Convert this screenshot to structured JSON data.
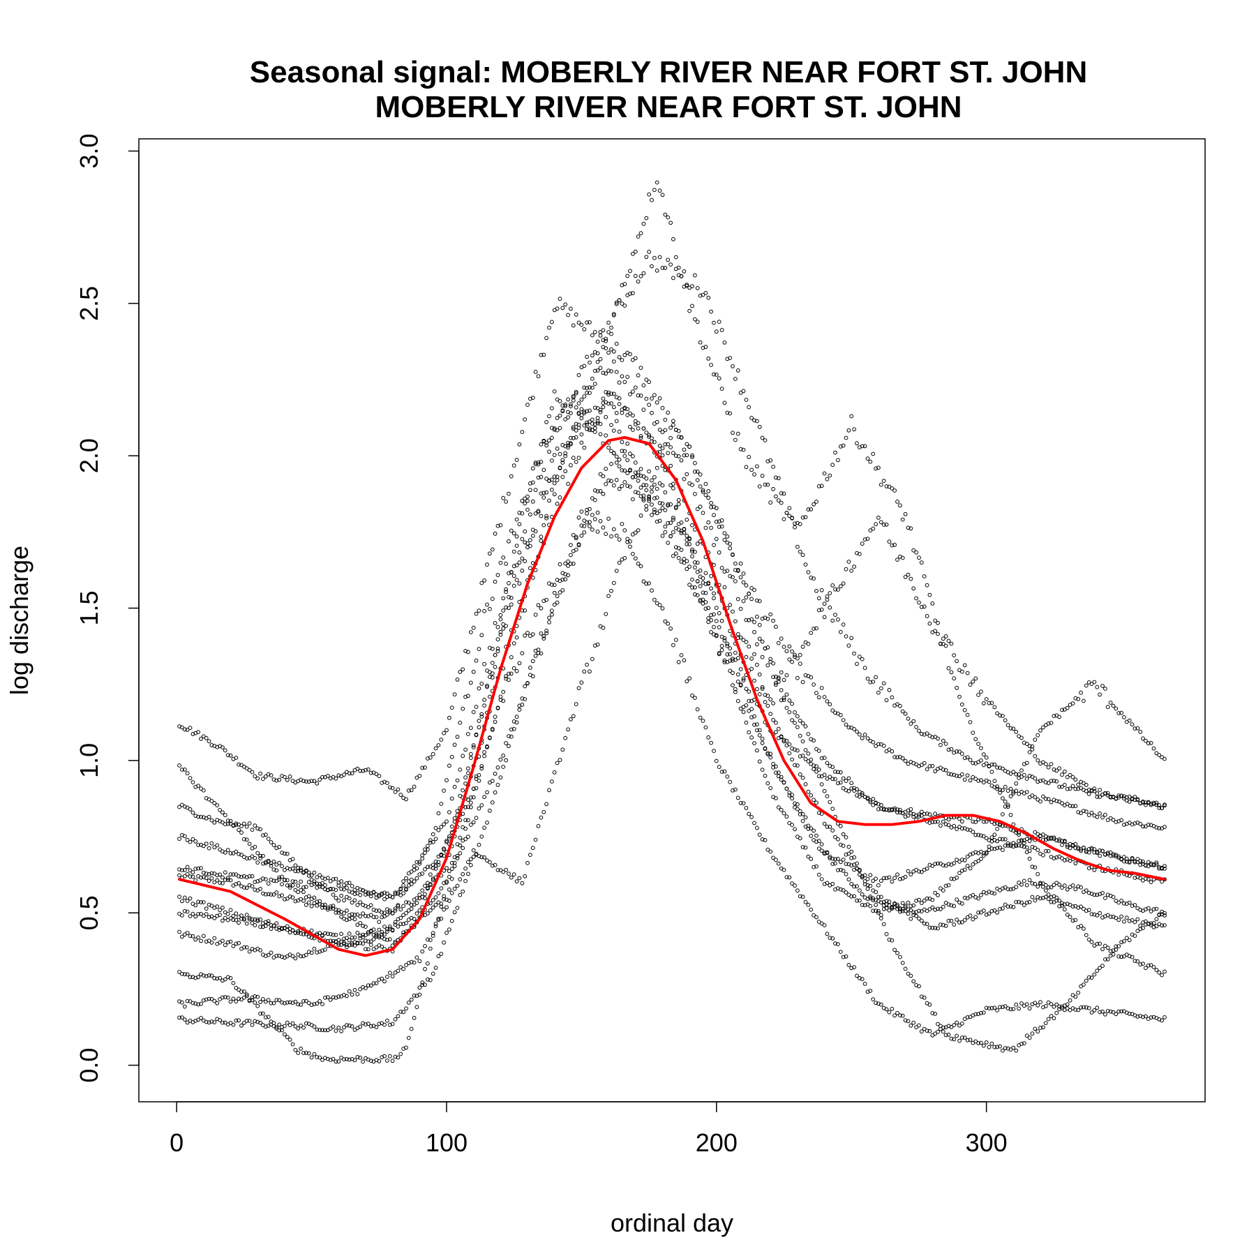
{
  "chart_data": {
    "type": "scatter",
    "title_lines": [
      "Seasonal signal: MOBERLY RIVER NEAR FORT ST. JOHN",
      "MOBERLY RIVER NEAR FORT ST. JOHN"
    ],
    "xlabel": "ordinal day",
    "ylabel": "log discharge",
    "xlim": [
      -14,
      381
    ],
    "ylim": [
      -0.12,
      3.04
    ],
    "x_ticks": [
      0,
      100,
      200,
      300
    ],
    "x_tick_labels": [
      "0",
      "100",
      "200",
      "300"
    ],
    "y_ticks": [
      0.0,
      0.5,
      1.0,
      1.5,
      2.0,
      2.5,
      3.0
    ],
    "y_tick_labels": [
      "0.0",
      "0.5",
      "1.0",
      "1.5",
      "2.0",
      "2.5",
      "3.0"
    ],
    "grid": false,
    "legend": "none",
    "colors": {
      "points": "#000000",
      "smooth": "#ff0000"
    },
    "point_series_anchors": [
      {
        "x": [
          1,
          20,
          40,
          65,
          75,
          90,
          110,
          125,
          140,
          155,
          165,
          180,
          200,
          220,
          240,
          260,
          280,
          300,
          320,
          340,
          366
        ],
        "y": [
          0.62,
          0.6,
          0.55,
          0.5,
          0.48,
          0.55,
          0.9,
          1.7,
          2.2,
          2.1,
          2.0,
          1.8,
          1.45,
          1.1,
          0.95,
          0.85,
          0.82,
          0.8,
          0.75,
          0.7,
          0.65
        ]
      },
      {
        "x": [
          1,
          15,
          30,
          50,
          70,
          85,
          100,
          120,
          140,
          155,
          170,
          190,
          210,
          230,
          250,
          270,
          290,
          310,
          330,
          350,
          366
        ],
        "y": [
          1.12,
          1.05,
          0.95,
          0.93,
          0.97,
          0.88,
          1.1,
          1.8,
          2.5,
          2.4,
          2.3,
          2.0,
          1.6,
          1.3,
          1.1,
          1.0,
          0.95,
          0.9,
          0.85,
          0.8,
          0.78
        ]
      },
      {
        "x": [
          1,
          20,
          40,
          60,
          75,
          90,
          105,
          125,
          145,
          160,
          175,
          195,
          215,
          235,
          255,
          275,
          295,
          315,
          335,
          355,
          366
        ],
        "y": [
          0.43,
          0.4,
          0.35,
          0.4,
          0.42,
          0.5,
          0.85,
          1.6,
          2.05,
          2.15,
          1.85,
          1.5,
          1.1,
          0.75,
          0.55,
          0.5,
          0.55,
          0.6,
          0.58,
          0.52,
          0.5
        ]
      },
      {
        "x": [
          1,
          20,
          45,
          60,
          80,
          95,
          115,
          135,
          150,
          165,
          180,
          200,
          220,
          240,
          260,
          280,
          300,
          320,
          340,
          366
        ],
        "y": [
          0.15,
          0.14,
          0.13,
          0.12,
          0.14,
          0.3,
          0.8,
          1.4,
          1.8,
          1.75,
          1.5,
          1.0,
          0.7,
          0.45,
          0.2,
          0.1,
          0.18,
          0.2,
          0.18,
          0.15
        ]
      },
      {
        "x": [
          1,
          15,
          30,
          45,
          60,
          80,
          95,
          115,
          135,
          155,
          175,
          195,
          215,
          235,
          255,
          275,
          295,
          315,
          335,
          366
        ],
        "y": [
          0.85,
          0.8,
          0.78,
          0.65,
          0.55,
          0.5,
          0.75,
          1.5,
          2.0,
          2.35,
          2.65,
          2.55,
          2.1,
          1.6,
          1.3,
          1.1,
          1.0,
          0.95,
          0.9,
          0.85
        ]
      },
      {
        "x": [
          1,
          20,
          45,
          55,
          80,
          85,
          100,
          120,
          140,
          160,
          178,
          190,
          210,
          230,
          250,
          270,
          290,
          305,
          320,
          340,
          366
        ],
        "y": [
          0.3,
          0.28,
          0.05,
          0.02,
          0.02,
          0.05,
          0.6,
          1.2,
          1.9,
          2.4,
          2.92,
          2.5,
          2.0,
          1.75,
          2.1,
          1.8,
          1.2,
          0.9,
          0.6,
          0.4,
          0.3
        ]
      },
      {
        "x": [
          1,
          20,
          40,
          60,
          80,
          100,
          120,
          140,
          160,
          180,
          200,
          220,
          240,
          260,
          280,
          300,
          320,
          340,
          366
        ],
        "y": [
          0.55,
          0.5,
          0.45,
          0.42,
          0.45,
          0.65,
          1.3,
          1.85,
          2.2,
          2.0,
          1.4,
          0.9,
          0.6,
          0.5,
          0.55,
          0.7,
          1.1,
          1.25,
          1.0
        ]
      },
      {
        "x": [
          1,
          25,
          50,
          70,
          90,
          110,
          128,
          145,
          165,
          185,
          205,
          225,
          245,
          265,
          285,
          310,
          330,
          350,
          366
        ],
        "y": [
          0.2,
          0.22,
          0.2,
          0.25,
          0.35,
          0.7,
          0.6,
          1.1,
          1.65,
          2.1,
          1.7,
          1.2,
          0.8,
          0.4,
          0.1,
          0.05,
          0.2,
          0.4,
          0.5
        ]
      },
      {
        "x": [
          1,
          20,
          40,
          60,
          80,
          100,
          120,
          140,
          160,
          180,
          200,
          220,
          240,
          260,
          280,
          300,
          320,
          340,
          366
        ],
        "y": [
          0.75,
          0.7,
          0.65,
          0.6,
          0.55,
          0.8,
          1.5,
          2.1,
          2.3,
          2.1,
          1.7,
          1.3,
          1.0,
          0.85,
          0.8,
          0.75,
          0.7,
          0.65,
          0.6
        ]
      },
      {
        "x": [
          1,
          20,
          40,
          60,
          80,
          100,
          120,
          140,
          160,
          180,
          200,
          220,
          240,
          260,
          280,
          300,
          320,
          340,
          366
        ],
        "y": [
          0.98,
          0.8,
          0.6,
          0.5,
          0.4,
          0.55,
          1.2,
          1.6,
          1.9,
          1.85,
          1.55,
          1.15,
          0.8,
          0.55,
          0.45,
          0.5,
          0.55,
          0.5,
          0.45
        ]
      },
      {
        "x": [
          1,
          20,
          40,
          60,
          80,
          100,
          120,
          140,
          160,
          180,
          200,
          220,
          240,
          260,
          280,
          300,
          320,
          340,
          366
        ],
        "y": [
          0.5,
          0.48,
          0.45,
          0.4,
          0.38,
          0.6,
          1.0,
          1.5,
          2.0,
          1.9,
          1.5,
          1.0,
          0.7,
          0.6,
          0.65,
          0.7,
          0.75,
          0.7,
          0.65
        ]
      },
      {
        "x": [
          1,
          20,
          40,
          60,
          80,
          100,
          120,
          140,
          160,
          180,
          200,
          220,
          240,
          260,
          280,
          300,
          320,
          340,
          366
        ],
        "y": [
          0.65,
          0.62,
          0.6,
          0.58,
          0.55,
          0.7,
          1.4,
          2.0,
          2.2,
          2.0,
          1.6,
          1.2,
          1.5,
          1.8,
          1.45,
          1.2,
          1.0,
          0.9,
          0.85
        ]
      }
    ],
    "smooth_curve": {
      "x": [
        1,
        20,
        40,
        60,
        70,
        80,
        90,
        100,
        110,
        120,
        130,
        140,
        150,
        160,
        166,
        175,
        185,
        195,
        205,
        215,
        225,
        235,
        245,
        255,
        265,
        275,
        285,
        295,
        305,
        315,
        325,
        335,
        345,
        355,
        366
      ],
      "y": [
        0.61,
        0.57,
        0.48,
        0.38,
        0.36,
        0.38,
        0.48,
        0.68,
        0.98,
        1.3,
        1.58,
        1.8,
        1.96,
        2.05,
        2.06,
        2.04,
        1.92,
        1.72,
        1.45,
        1.2,
        1.0,
        0.86,
        0.8,
        0.79,
        0.79,
        0.8,
        0.82,
        0.82,
        0.8,
        0.76,
        0.71,
        0.67,
        0.64,
        0.63,
        0.61
      ]
    }
  }
}
